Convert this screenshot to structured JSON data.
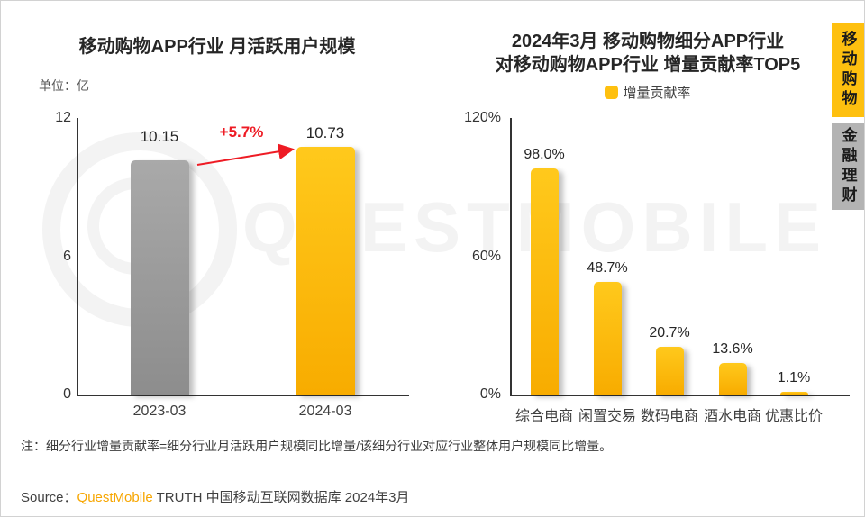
{
  "page": {
    "watermark_text": "QUESTMOBILE",
    "footnote": "注：细分行业增量贡献率=细分行业月活跃用户规模同比增量/该细分行业对应行业整体用户规模同比增量。",
    "source_prefix": "Source：",
    "source_brand": "QuestMobile",
    "source_suffix": " TRUTH 中国移动互联网数据库 2024年3月"
  },
  "sidebar": {
    "tabs": [
      {
        "label": "移动购物",
        "active": true
      },
      {
        "label": "金融理财",
        "active": false
      }
    ]
  },
  "colors": {
    "accent_orange": "#FEC00F",
    "bar_gray": "#9B9B9B",
    "growth_red": "#EE1B24",
    "inactive_tab_gray": "#B3B3B3"
  },
  "chart_data": [
    {
      "type": "bar",
      "title": "移动购物APP行业 月活跃用户规模",
      "unit_label": "单位：亿",
      "categories": [
        "2023-03",
        "2024-03"
      ],
      "values": [
        10.15,
        10.73
      ],
      "value_labels": [
        "10.15",
        "10.73"
      ],
      "bar_colors": [
        "gray",
        "orange"
      ],
      "annotation": "+5.7%",
      "ylim": [
        0,
        12
      ],
      "y_tick_labels_top_down": [
        "12",
        "6",
        "0"
      ],
      "grid": false,
      "legend_position": "none"
    },
    {
      "type": "bar",
      "title": "2024年3月 移动购物细分APP行业 对移动购物APP行业 增量贡献率TOP5",
      "title_lines": [
        "2024年3月 移动购物细分APP行业",
        "对移动购物APP行业 增量贡献率TOP5"
      ],
      "legend": "增量贡献率",
      "categories": [
        "综合电商",
        "闲置交易",
        "数码电商",
        "酒水电商",
        "优惠比价"
      ],
      "values": [
        98.0,
        48.7,
        20.7,
        13.6,
        1.1
      ],
      "value_labels": [
        "98.0%",
        "48.7%",
        "20.7%",
        "13.6%",
        "1.1%"
      ],
      "bar_colors": [
        "orange",
        "orange",
        "orange",
        "orange",
        "orange"
      ],
      "ylim": [
        0,
        120
      ],
      "y_tick_labels_top_down": [
        "120%",
        "60%",
        "0%"
      ],
      "grid": false,
      "legend_position": "top"
    }
  ]
}
